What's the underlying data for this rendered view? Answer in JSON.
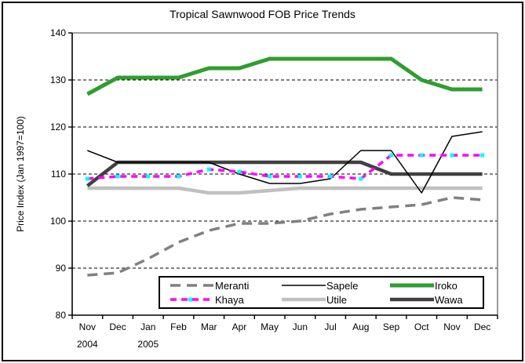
{
  "title": "Tropical Sawnwood FOB Price Trends",
  "y_axis": {
    "label": "Price Index (Jan 1997=100)",
    "ticks": [
      140,
      130,
      120,
      110,
      100,
      90,
      80
    ],
    "min": 80,
    "max": 140
  },
  "x_axis": {
    "labels": [
      "Nov",
      "Dec",
      "Jan",
      "Feb",
      "Mar",
      "Apr",
      "May",
      "Jun",
      "Jul",
      "Aug",
      "Sep",
      "Oct",
      "Nov",
      "Dec"
    ],
    "year_labels": [
      {
        "text": "2004",
        "index": 0
      },
      {
        "text": "2005",
        "index": 2
      }
    ]
  },
  "chart_data": {
    "type": "line",
    "title": "Tropical Sawnwood FOB Price Trends",
    "ylabel": "Price Index (Jan 1997=100)",
    "xlabel": "",
    "ylim": [
      80,
      140
    ],
    "grid": "horizontal-dashed",
    "legend_position": "bottom-inside-box",
    "categories": [
      "Nov 2004",
      "Dec 2004",
      "Jan 2005",
      "Feb 2005",
      "Mar 2005",
      "Apr 2005",
      "May 2005",
      "Jun 2005",
      "Jul 2005",
      "Aug 2005",
      "Sep 2005",
      "Oct 2005",
      "Nov 2005",
      "Dec 2005"
    ],
    "series": [
      {
        "name": "Meranti",
        "color": "#808080",
        "style": "dashed",
        "width": 3.5,
        "z": 2,
        "values": [
          88.5,
          89,
          92,
          95.5,
          98,
          99.5,
          99.5,
          100,
          101.5,
          102.5,
          103,
          103.5,
          105,
          104.5
        ]
      },
      {
        "name": "Sapele",
        "color": "#000000",
        "style": "solid",
        "width": 1.5,
        "z": 5,
        "values": [
          115,
          112.5,
          112.5,
          112.5,
          112.5,
          110,
          108,
          108,
          109,
          115,
          115,
          106,
          118,
          119
        ]
      },
      {
        "name": "Iroko",
        "color": "#2f9e2f",
        "style": "solid",
        "width": 5,
        "z": 4,
        "values": [
          127,
          130.5,
          130.5,
          130.5,
          132.5,
          132.5,
          134.5,
          134.5,
          134.5,
          134.5,
          134.5,
          130,
          128,
          128
        ]
      },
      {
        "name": "Khaya",
        "color": "#ff00ff",
        "style": "dash-dot",
        "width": 3.5,
        "z": 6,
        "marker_color": "#00ffff",
        "values": [
          109,
          109.5,
          109.5,
          109.5,
          111,
          110.5,
          109.5,
          109.5,
          109.5,
          109,
          114,
          114,
          114,
          114
        ]
      },
      {
        "name": "Utile",
        "color": "#c0c0c0",
        "style": "solid",
        "width": 4.5,
        "z": 1,
        "values": [
          107,
          107,
          107,
          107,
          106,
          106,
          106.5,
          107,
          107,
          107,
          107,
          107,
          107,
          107
        ]
      },
      {
        "name": "Wawa",
        "color": "#404040",
        "style": "solid",
        "width": 4.5,
        "z": 3,
        "values": [
          107.5,
          112.5,
          112.5,
          112.5,
          112.5,
          112.5,
          112.5,
          112.5,
          112.5,
          112.5,
          110,
          110,
          110,
          110
        ]
      }
    ]
  },
  "legend": {
    "order": [
      "Meranti",
      "Sapele",
      "Iroko",
      "Khaya",
      "Utile",
      "Wawa"
    ]
  },
  "colors": {
    "gridline": "#000000",
    "plot_border_top_right": "#808080",
    "axis": "#000000",
    "background": "#ffffff"
  }
}
